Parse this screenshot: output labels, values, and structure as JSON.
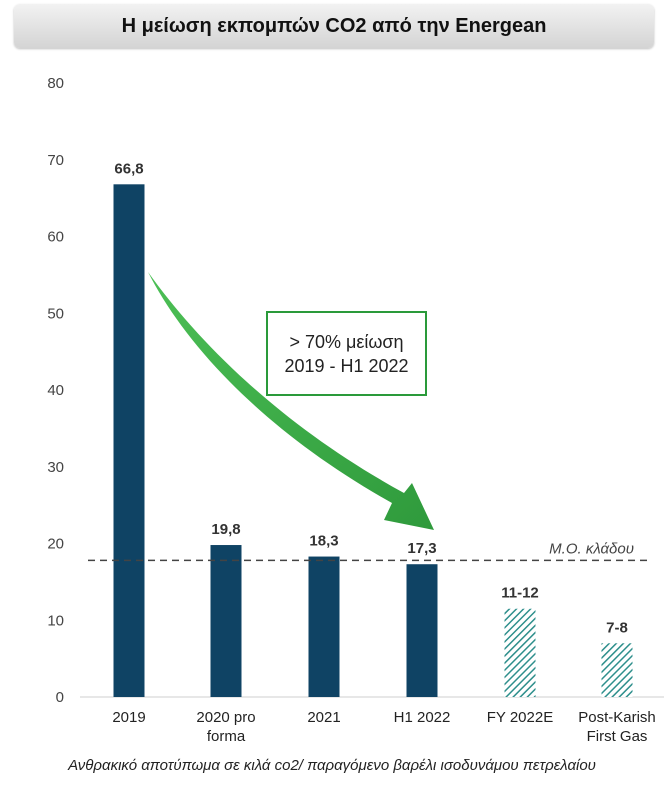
{
  "header": {
    "title": "Η μείωση εκπομπών CO2 από την Energean"
  },
  "chart_data": {
    "type": "bar",
    "title": "Η μείωση εκπομπών CO2 από την Energean",
    "categories": [
      [
        "2019"
      ],
      [
        "2020 pro",
        "forma"
      ],
      [
        "2021"
      ],
      [
        "H1 2022"
      ],
      [
        "FY 2022E"
      ],
      [
        "Post-Karish",
        "First Gas"
      ]
    ],
    "values": [
      66.8,
      19.8,
      18.3,
      17.3,
      11.5,
      7.0
    ],
    "data_labels": [
      "66,8",
      "19,8",
      "18,3",
      "17,3",
      "11-12",
      "7-8"
    ],
    "estimated": [
      false,
      false,
      false,
      false,
      true,
      true
    ],
    "ylim": [
      0,
      80
    ],
    "yticks": [
      0,
      10,
      20,
      30,
      40,
      50,
      60,
      70,
      80
    ],
    "reference_line": {
      "value": 17.8,
      "label": "Μ.Ο. κλάδου"
    },
    "annotation": {
      "line1": "> 70% μείωση",
      "line2": "2019 - H1 2022"
    },
    "xlabel": "Ανθρακικό αποτύπωμα σε κιλά co2/ παραγόμενο βαρέλι ισοδυνάμου πετρελαίου",
    "ylabel": "",
    "colors": {
      "bar": "#0f4364",
      "hatch": "#2e8f8c",
      "arrow": "#39a845",
      "callout_border": "#2a9a3a"
    }
  }
}
